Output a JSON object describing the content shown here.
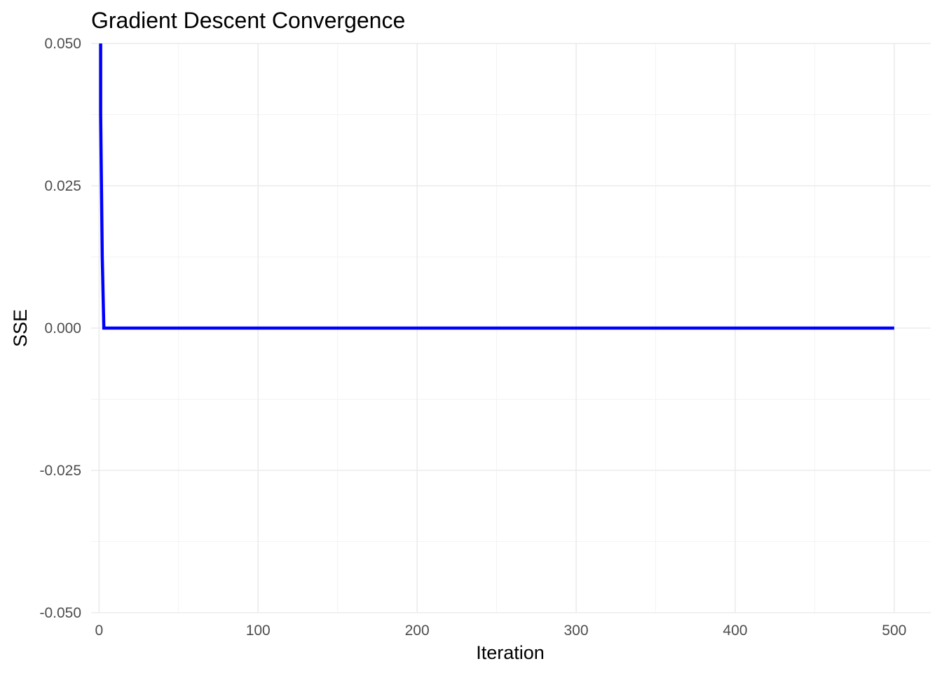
{
  "chart_data": {
    "type": "line",
    "title": "Gradient Descent Convergence",
    "xlabel": "Iteration",
    "ylabel": "SSE",
    "xlim": [
      -5,
      523
    ],
    "ylim": [
      -0.05,
      0.05
    ],
    "x_ticks": [
      0,
      100,
      200,
      300,
      400,
      500
    ],
    "x_tick_labels": [
      "0",
      "100",
      "200",
      "300",
      "400",
      "500"
    ],
    "y_ticks": [
      -0.05,
      -0.025,
      0.0,
      0.025,
      0.05
    ],
    "y_tick_labels": [
      "-0.050",
      "-0.025",
      "0.000",
      "0.025",
      "0.050"
    ],
    "grid": true,
    "legend": "none",
    "line_color": "#0000ff",
    "series": [
      {
        "x": [
          1,
          1,
          2,
          3,
          4,
          500
        ],
        "y": [
          0.06,
          0.0375,
          0.0125,
          0.0,
          0.0,
          0.0
        ]
      }
    ]
  }
}
